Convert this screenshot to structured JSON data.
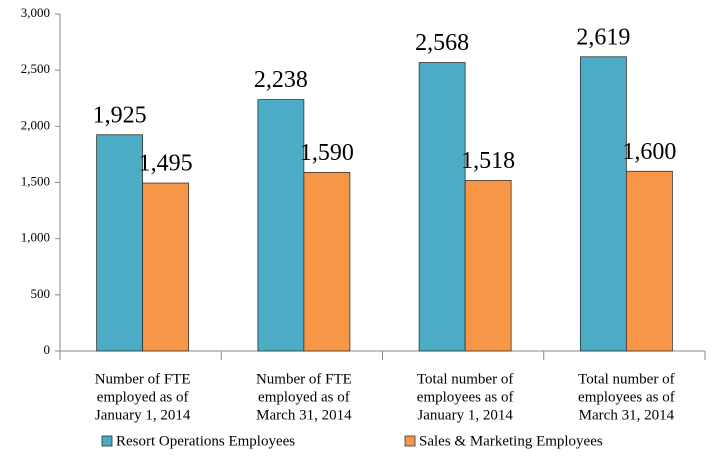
{
  "chart_data": {
    "type": "bar",
    "categories": [
      [
        "Number of FTE",
        "employed as of",
        "January 1, 2014"
      ],
      [
        "Number of FTE",
        "employed as of",
        "March 31, 2014"
      ],
      [
        "Total number of",
        "employees as of",
        "January 1, 2014"
      ],
      [
        "Total number of",
        "employees as of",
        "March 31, 2014"
      ]
    ],
    "series": [
      {
        "name": "Resort Operations Employees",
        "color": "#4bacc6",
        "values": [
          1925,
          2238,
          2568,
          2619
        ],
        "value_labels": [
          "1,925",
          "2,238",
          "2,568",
          "2,619"
        ]
      },
      {
        "name": "Sales & Marketing Employees",
        "color": "#f79646",
        "values": [
          1495,
          1590,
          1518,
          1600
        ],
        "value_labels": [
          "1,495",
          "1,590",
          "1,518",
          "1,600"
        ]
      }
    ],
    "ylim": [
      0,
      3000
    ],
    "yticks": [
      0,
      500,
      {
        "value": 1000,
        "label": "1,000"
      },
      {
        "value": 1500,
        "label": "1,500"
      },
      {
        "value": 2000,
        "label": "2,000"
      },
      {
        "value": 2500,
        "label": "2,500"
      },
      {
        "value": 3000,
        "label": "3,000"
      }
    ],
    "legend": "bottom"
  }
}
